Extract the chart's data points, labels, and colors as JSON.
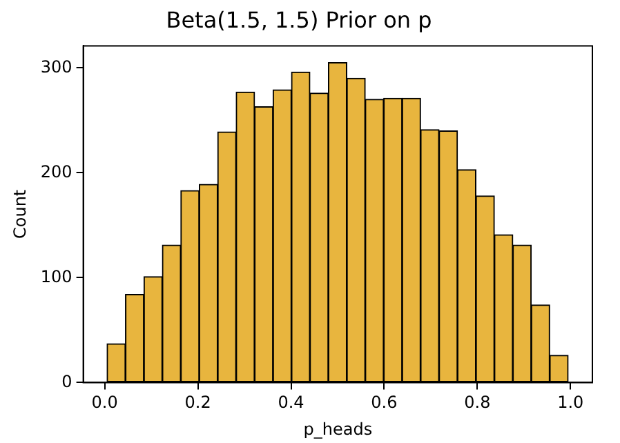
{
  "chart_data": {
    "type": "histogram",
    "title": "Beta(1.5, 1.5) Prior on p",
    "xlabel": "p_heads",
    "ylabel": "Count",
    "bins": [
      0.005,
      0.0446,
      0.0842,
      0.1238,
      0.1634,
      0.203,
      0.2426,
      0.2822,
      0.3218,
      0.3614,
      0.401,
      0.4406,
      0.4802,
      0.5198,
      0.5594,
      0.599,
      0.6386,
      0.6782,
      0.7178,
      0.7574,
      0.797,
      0.8366,
      0.8762,
      0.9158,
      0.9554,
      0.995
    ],
    "values": [
      37,
      84,
      101,
      131,
      183,
      189,
      239,
      277,
      263,
      279,
      296,
      276,
      305,
      290,
      270,
      271,
      271,
      241,
      240,
      203,
      178,
      141,
      131,
      74,
      26
    ],
    "color": "#e8b53e",
    "xlim": [
      -0.046,
      1.047
    ],
    "xticks": [
      {
        "value": 0,
        "label": "0.0"
      },
      0.2,
      0.4,
      0.6,
      0.8,
      {
        "value": 1,
        "label": "1.0"
      }
    ],
    "ylim": [
      0,
      321
    ],
    "yticks": [
      0,
      100,
      200,
      300
    ],
    "grid": false,
    "legend": false
  }
}
